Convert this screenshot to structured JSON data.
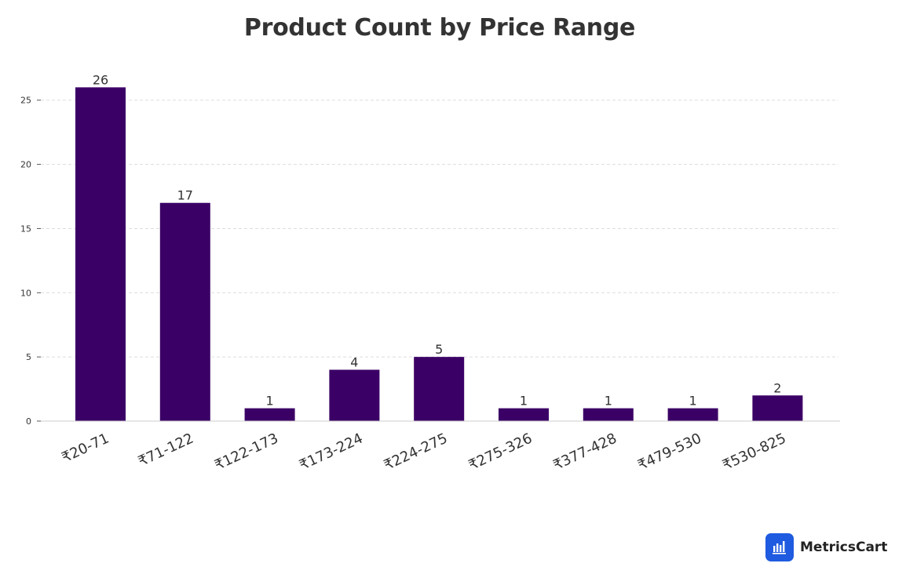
{
  "chart_data": {
    "type": "bar",
    "title": "Product Count by Price Range",
    "xlabel": "",
    "ylabel": "",
    "categories": [
      "₹20-71",
      "₹71-122",
      "₹122-173",
      "₹173-224",
      "₹224-275",
      "₹275-326",
      "₹377-428",
      "₹479-530",
      "₹530-825"
    ],
    "values": [
      26,
      17,
      1,
      4,
      5,
      1,
      1,
      1,
      2
    ],
    "ylim": [
      0,
      27
    ],
    "yticks": [
      0,
      5,
      10,
      15,
      20,
      25
    ],
    "grid": true,
    "bar_color": "#3b0066",
    "data_labels": true
  },
  "branding": {
    "name": "MetricsCart",
    "icon": "bar-chart-icon",
    "icon_color": "#1f5be0"
  }
}
